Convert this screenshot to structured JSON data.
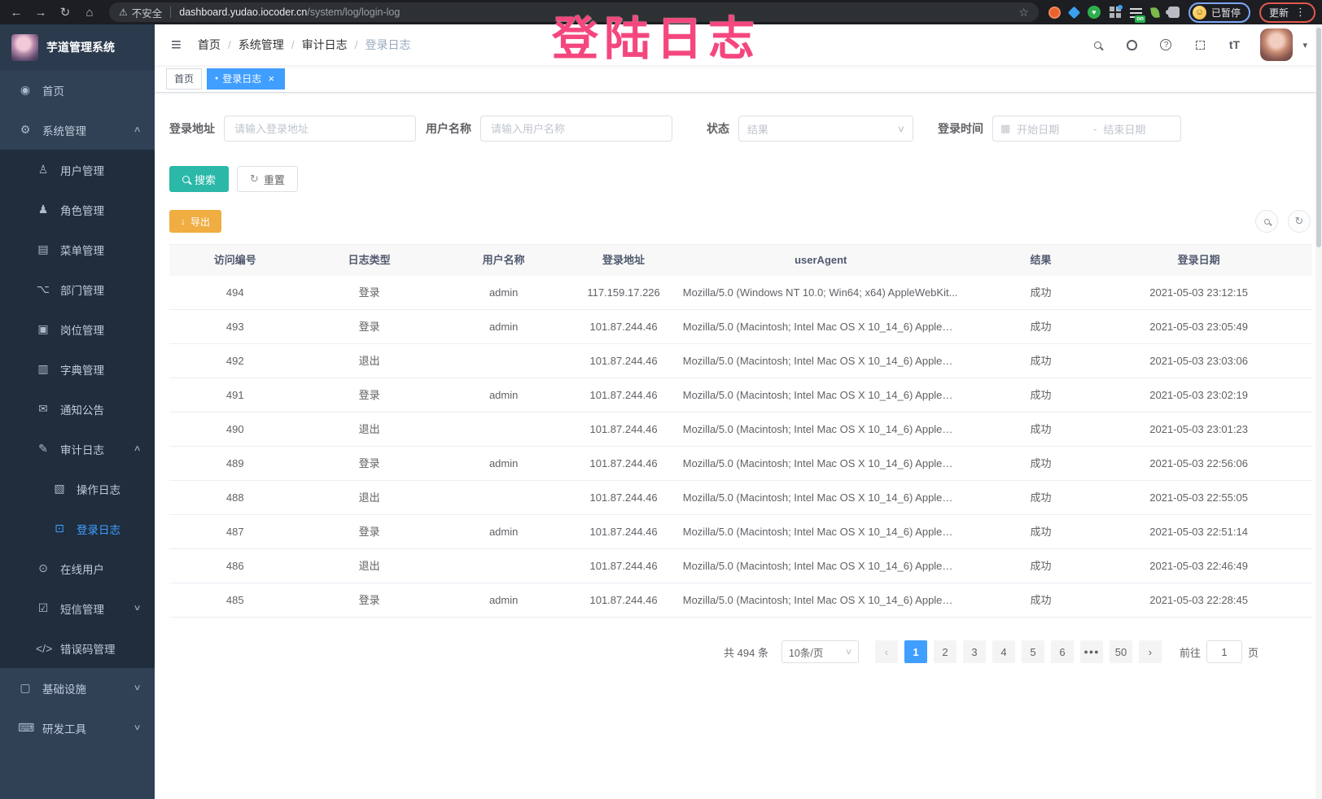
{
  "colors": {
    "accent_blue": "#409EFF",
    "search_teal": "#2BB8A8",
    "export_orange": "#EFAD42",
    "overlay_pink": "#F4477D",
    "sidebar_bg": "#304156",
    "submenu_bg": "#1F2D3D"
  },
  "browser": {
    "security_label": "不安全",
    "url_host": "dashboard.yudao.iocoder.cn",
    "url_path": "/system/log/login-log",
    "extension_badge": "on",
    "paused_label": "已暂停",
    "update_label": "更新"
  },
  "overlay_text": "登陆日志",
  "sidebar": {
    "logo_title": "芋道管理系统",
    "items": [
      {
        "key": "home",
        "icon": "dashboard",
        "label": "首页"
      },
      {
        "key": "system",
        "icon": "gear",
        "label": "系统管理",
        "arrow": "chevron-up"
      },
      {
        "key": "user",
        "icon": "user",
        "label": "用户管理",
        "indent": 1,
        "sub": true
      },
      {
        "key": "role",
        "icon": "users",
        "label": "角色管理",
        "indent": 1,
        "sub": true
      },
      {
        "key": "menu",
        "icon": "menu",
        "label": "菜单管理",
        "indent": 1,
        "sub": true
      },
      {
        "key": "dept",
        "icon": "tree",
        "label": "部门管理",
        "indent": 1,
        "sub": true
      },
      {
        "key": "post",
        "icon": "post",
        "label": "岗位管理",
        "indent": 1,
        "sub": true
      },
      {
        "key": "dict",
        "icon": "dict",
        "label": "字典管理",
        "indent": 1,
        "sub": true
      },
      {
        "key": "notice",
        "icon": "message",
        "label": "通知公告",
        "indent": 1,
        "sub": true
      },
      {
        "key": "audit-log",
        "icon": "log",
        "label": "审计日志",
        "indent": 1,
        "sub": true,
        "arrow": "chevron-up"
      },
      {
        "key": "operate-log",
        "icon": "form",
        "label": "操作日志",
        "indent": 2,
        "sub": true
      },
      {
        "key": "login-log",
        "icon": "logininfor",
        "label": "登录日志",
        "indent": 2,
        "sub": true,
        "active": true
      },
      {
        "key": "online",
        "icon": "online",
        "label": "在线用户",
        "indent": 1,
        "sub": true
      },
      {
        "key": "sms",
        "icon": "sms",
        "label": "短信管理",
        "indent": 1,
        "sub": true,
        "arrow": "chevron-down"
      },
      {
        "key": "error-code",
        "icon": "code",
        "label": "错误码管理",
        "indent": 1,
        "sub": true
      },
      {
        "key": "infra",
        "icon": "monitor",
        "label": "基础设施",
        "arrow": "chevron-down"
      },
      {
        "key": "dev-tool",
        "icon": "tool",
        "label": "研发工具",
        "arrow": "chevron-down"
      }
    ]
  },
  "navbar": {
    "breadcrumbs": [
      {
        "key": "home",
        "label": "首页"
      },
      {
        "key": "system",
        "label": "系统管理"
      },
      {
        "key": "audit-log",
        "label": "审计日志"
      },
      {
        "key": "login-log",
        "label": "登录日志",
        "current": true
      }
    ]
  },
  "tags": [
    {
      "key": "home",
      "label": "首页"
    },
    {
      "key": "login-log",
      "label": "登录日志",
      "active": true,
      "closable": true
    }
  ],
  "filters": {
    "address_label": "登录地址",
    "address_placeholder": "请输入登录地址",
    "username_label": "用户名称",
    "username_placeholder": "请输入用户名称",
    "status_label": "状态",
    "status_placeholder": "结果",
    "time_label": "登录时间",
    "start_placeholder": "开始日期",
    "range_separator": "-",
    "end_placeholder": "结束日期"
  },
  "actions": {
    "search": "搜索",
    "reset": "重置",
    "export": "导出"
  },
  "table": {
    "columns": [
      "访问编号",
      "日志类型",
      "用户名称",
      "登录地址",
      "userAgent",
      "结果",
      "登录日期"
    ],
    "rows": [
      {
        "id": "494",
        "type": "登录",
        "username": "admin",
        "ip": "117.159.17.226",
        "user_agent": "Mozilla/5.0 (Windows NT 10.0; Win64; x64) AppleWebKit...",
        "result": "成功",
        "date": "2021-05-03 23:12:15"
      },
      {
        "id": "493",
        "type": "登录",
        "username": "admin",
        "ip": "101.87.244.46",
        "user_agent": "Mozilla/5.0 (Macintosh; Intel Mac OS X 10_14_6) AppleWe...",
        "result": "成功",
        "date": "2021-05-03 23:05:49"
      },
      {
        "id": "492",
        "type": "退出",
        "username": "",
        "ip": "101.87.244.46",
        "user_agent": "Mozilla/5.0 (Macintosh; Intel Mac OS X 10_14_6) AppleWe...",
        "result": "成功",
        "date": "2021-05-03 23:03:06"
      },
      {
        "id": "491",
        "type": "登录",
        "username": "admin",
        "ip": "101.87.244.46",
        "user_agent": "Mozilla/5.0 (Macintosh; Intel Mac OS X 10_14_6) AppleWe...",
        "result": "成功",
        "date": "2021-05-03 23:02:19"
      },
      {
        "id": "490",
        "type": "退出",
        "username": "",
        "ip": "101.87.244.46",
        "user_agent": "Mozilla/5.0 (Macintosh; Intel Mac OS X 10_14_6) AppleWe...",
        "result": "成功",
        "date": "2021-05-03 23:01:23"
      },
      {
        "id": "489",
        "type": "登录",
        "username": "admin",
        "ip": "101.87.244.46",
        "user_agent": "Mozilla/5.0 (Macintosh; Intel Mac OS X 10_14_6) AppleWe...",
        "result": "成功",
        "date": "2021-05-03 22:56:06"
      },
      {
        "id": "488",
        "type": "退出",
        "username": "",
        "ip": "101.87.244.46",
        "user_agent": "Mozilla/5.0 (Macintosh; Intel Mac OS X 10_14_6) AppleWe...",
        "result": "成功",
        "date": "2021-05-03 22:55:05"
      },
      {
        "id": "487",
        "type": "登录",
        "username": "admin",
        "ip": "101.87.244.46",
        "user_agent": "Mozilla/5.0 (Macintosh; Intel Mac OS X 10_14_6) AppleWe...",
        "result": "成功",
        "date": "2021-05-03 22:51:14"
      },
      {
        "id": "486",
        "type": "退出",
        "username": "",
        "ip": "101.87.244.46",
        "user_agent": "Mozilla/5.0 (Macintosh; Intel Mac OS X 10_14_6) AppleWe...",
        "result": "成功",
        "date": "2021-05-03 22:46:49"
      },
      {
        "id": "485",
        "type": "登录",
        "username": "admin",
        "ip": "101.87.244.46",
        "user_agent": "Mozilla/5.0 (Macintosh; Intel Mac OS X 10_14_6) AppleWe...",
        "result": "成功",
        "date": "2021-05-03 22:28:45"
      }
    ]
  },
  "pagination": {
    "total_text": "共 494 条",
    "page_size": "10条/页",
    "pages": [
      {
        "label": "1",
        "active": true
      },
      {
        "label": "2"
      },
      {
        "label": "3"
      },
      {
        "label": "4"
      },
      {
        "label": "5"
      },
      {
        "label": "6"
      },
      {
        "label": "●●●",
        "ellipsis": true
      },
      {
        "label": "50"
      }
    ],
    "goto_label": "前往",
    "goto_value": "1",
    "goto_suffix": "页"
  }
}
